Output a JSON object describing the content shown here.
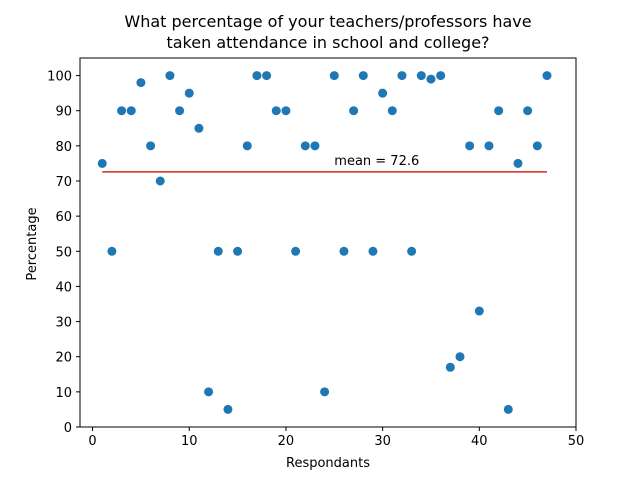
{
  "chart_data": {
    "type": "scatter",
    "title": [
      "What percentage of your teachers/professors have",
      "taken attendance in school and college?"
    ],
    "xlabel": "Respondants",
    "ylabel": "Percentage",
    "xlim": [
      -1.3,
      50
    ],
    "ylim": [
      0,
      105
    ],
    "xticks": [
      0,
      10,
      20,
      30,
      40,
      50
    ],
    "yticks": [
      0,
      10,
      20,
      30,
      40,
      50,
      60,
      70,
      80,
      90,
      100
    ],
    "grid": false,
    "point_color": "#1f77b4",
    "line_color": "#d62728",
    "x": [
      1,
      2,
      3,
      4,
      5,
      6,
      7,
      8,
      9,
      10,
      11,
      12,
      13,
      14,
      15,
      16,
      17,
      18,
      19,
      20,
      21,
      22,
      23,
      24,
      25,
      26,
      27,
      28,
      29,
      30,
      31,
      32,
      33,
      34,
      35,
      36,
      37,
      38,
      39,
      40,
      41,
      42,
      43,
      44,
      45,
      46,
      47
    ],
    "y": [
      75,
      50,
      90,
      90,
      98,
      80,
      70,
      100,
      90,
      95,
      85,
      10,
      50,
      5,
      50,
      80,
      100,
      100,
      90,
      90,
      50,
      80,
      80,
      10,
      100,
      50,
      90,
      100,
      50,
      95,
      90,
      100,
      50,
      100,
      99,
      100,
      17,
      20,
      80,
      33,
      80,
      90,
      5,
      75,
      90,
      80,
      100
    ],
    "mean": {
      "value": 72.6,
      "x_range": [
        1,
        47
      ],
      "label": "mean = 72.6",
      "label_x": 25
    }
  }
}
